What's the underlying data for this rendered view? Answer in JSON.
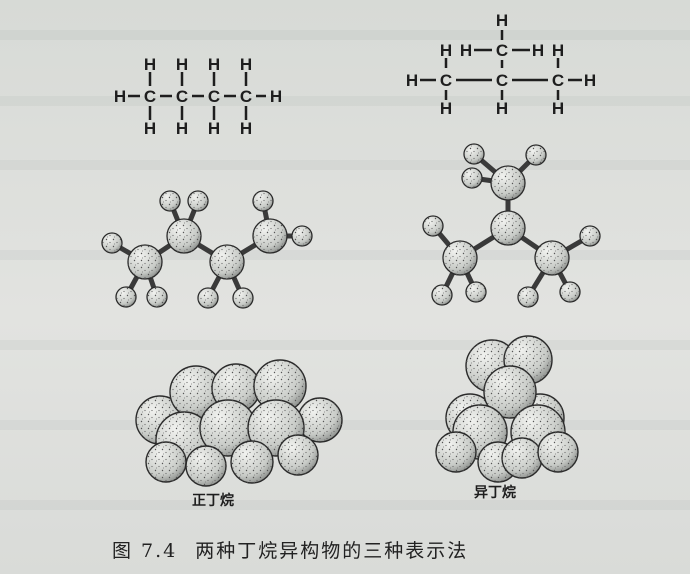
{
  "figure": {
    "number": "图 7.4",
    "caption": "两种丁烷异构物的三种表示法",
    "labels": {
      "n_butane": "正丁烷",
      "isobutane": "异丁烷"
    },
    "atoms": {
      "carbon": "C",
      "hydrogen": "H"
    },
    "colors": {
      "ink": "#1e1e1e",
      "paper": "#dcdedb",
      "atom_fill": "#cfd2cf"
    }
  }
}
